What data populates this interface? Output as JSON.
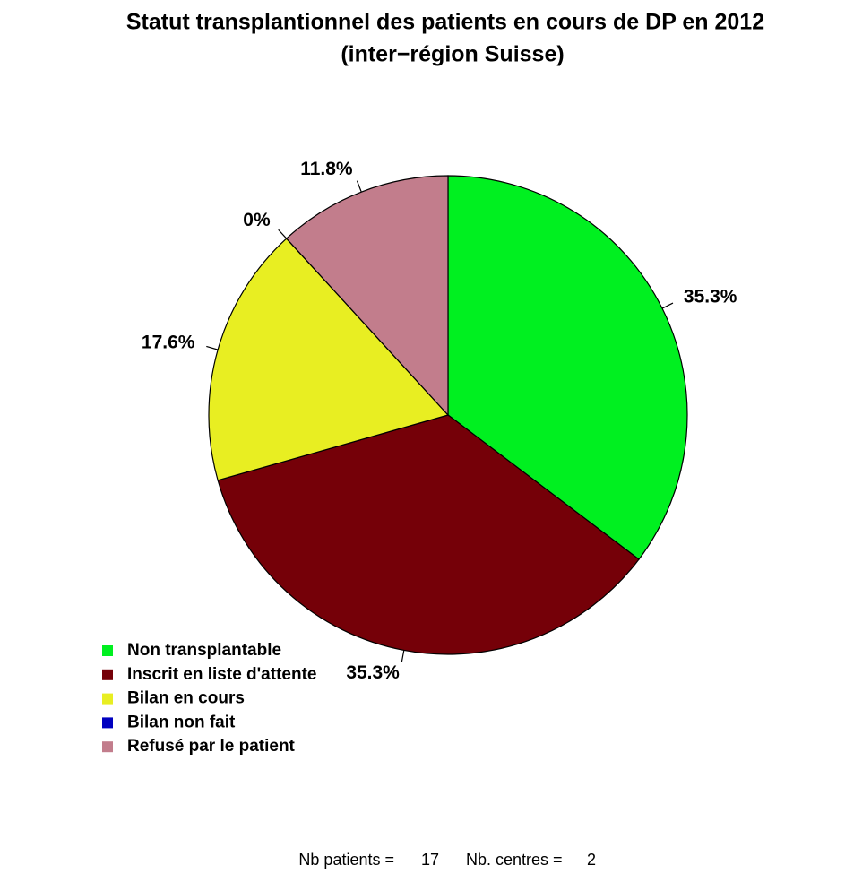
{
  "chart_data": {
    "type": "pie",
    "title": "Statut transplantionnel des patients en cours de DP en 2012",
    "subtitle": "(inter−région Suisse)",
    "categories": [
      "Non transplantable",
      "Inscrit en liste d'attente",
      "Bilan en cours",
      "Bilan non fait",
      "Refusé par le patient"
    ],
    "values": [
      35.3,
      35.3,
      17.6,
      0,
      11.8
    ],
    "value_labels": [
      "35.3%",
      "35.3%",
      "17.6%",
      "0%",
      "11.8%"
    ],
    "colors": [
      "#00f020",
      "#750008",
      "#e8ee22",
      "#0000c0",
      "#c27d8c"
    ],
    "start_angle": 90,
    "direction": "clockwise",
    "legend": "bottom-left",
    "footer": {
      "patients_label": "Nb patients =",
      "patients": 17,
      "centres_label": "Nb. centres =",
      "centres": 2
    }
  }
}
